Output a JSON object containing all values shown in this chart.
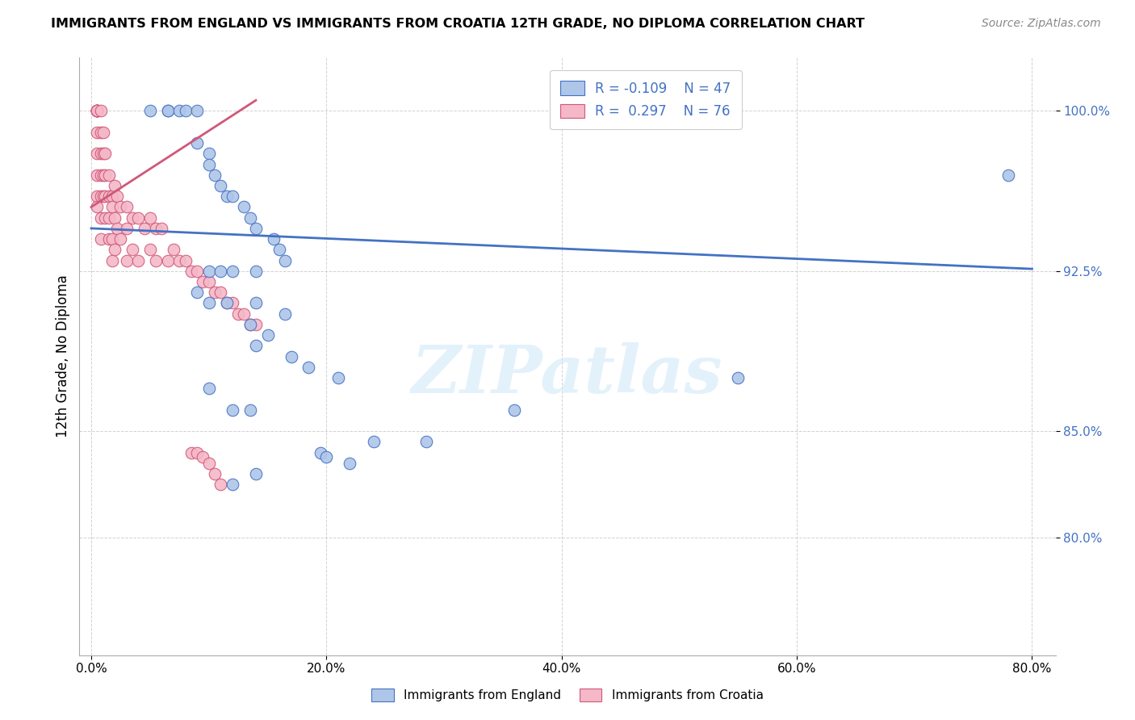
{
  "title": "IMMIGRANTS FROM ENGLAND VS IMMIGRANTS FROM CROATIA 12TH GRADE, NO DIPLOMA CORRELATION CHART",
  "source_text": "Source: ZipAtlas.com",
  "ylabel": "12th Grade, No Diploma",
  "x_tick_labels": [
    "0.0%",
    "20.0%",
    "40.0%",
    "60.0%",
    "80.0%"
  ],
  "x_tick_positions": [
    0.0,
    0.2,
    0.4,
    0.6,
    0.8
  ],
  "y_tick_labels": [
    "80.0%",
    "85.0%",
    "92.5%",
    "100.0%"
  ],
  "y_tick_positions": [
    0.8,
    0.85,
    0.925,
    1.0
  ],
  "xlim": [
    -0.01,
    0.82
  ],
  "ylim": [
    0.745,
    1.025
  ],
  "england_R": -0.109,
  "england_N": 47,
  "croatia_R": 0.297,
  "croatia_N": 76,
  "england_color": "#aec6e8",
  "croatia_color": "#f4b8c8",
  "england_line_color": "#4472c4",
  "croatia_line_color": "#d05878",
  "background_color": "#ffffff",
  "watermark": "ZIPatlas",
  "england_line_x0": 0.0,
  "england_line_x1": 0.8,
  "england_line_y0": 0.945,
  "england_line_y1": 0.926,
  "croatia_line_x0": 0.0,
  "croatia_line_x1": 0.14,
  "croatia_line_y0": 0.955,
  "croatia_line_y1": 1.005,
  "england_x": [
    0.05,
    0.065,
    0.065,
    0.075,
    0.08,
    0.09,
    0.09,
    0.1,
    0.1,
    0.105,
    0.11,
    0.115,
    0.12,
    0.13,
    0.135,
    0.14,
    0.155,
    0.16,
    0.165,
    0.1,
    0.11,
    0.12,
    0.14,
    0.09,
    0.1,
    0.115,
    0.14,
    0.165,
    0.135,
    0.15,
    0.14,
    0.17,
    0.185,
    0.21,
    0.1,
    0.12,
    0.135,
    0.78,
    0.55,
    0.36,
    0.285,
    0.24,
    0.195,
    0.2,
    0.22,
    0.14,
    0.12
  ],
  "england_y": [
    1.0,
    1.0,
    1.0,
    1.0,
    1.0,
    1.0,
    0.985,
    0.98,
    0.975,
    0.97,
    0.965,
    0.96,
    0.96,
    0.955,
    0.95,
    0.945,
    0.94,
    0.935,
    0.93,
    0.925,
    0.925,
    0.925,
    0.925,
    0.915,
    0.91,
    0.91,
    0.91,
    0.905,
    0.9,
    0.895,
    0.89,
    0.885,
    0.88,
    0.875,
    0.87,
    0.86,
    0.86,
    0.97,
    0.875,
    0.86,
    0.845,
    0.845,
    0.84,
    0.838,
    0.835,
    0.83,
    0.825
  ],
  "croatia_x": [
    0.005,
    0.005,
    0.005,
    0.005,
    0.005,
    0.005,
    0.005,
    0.005,
    0.005,
    0.005,
    0.005,
    0.008,
    0.008,
    0.008,
    0.008,
    0.008,
    0.008,
    0.008,
    0.01,
    0.01,
    0.01,
    0.01,
    0.012,
    0.012,
    0.012,
    0.012,
    0.015,
    0.015,
    0.015,
    0.015,
    0.018,
    0.018,
    0.018,
    0.018,
    0.02,
    0.02,
    0.02,
    0.022,
    0.022,
    0.025,
    0.025,
    0.03,
    0.03,
    0.03,
    0.035,
    0.035,
    0.04,
    0.04,
    0.045,
    0.05,
    0.05,
    0.055,
    0.055,
    0.06,
    0.065,
    0.07,
    0.075,
    0.08,
    0.085,
    0.09,
    0.095,
    0.1,
    0.105,
    0.11,
    0.115,
    0.12,
    0.125,
    0.13,
    0.135,
    0.14,
    0.085,
    0.09,
    0.095,
    0.1,
    0.105,
    0.11
  ],
  "croatia_y": [
    1.0,
    1.0,
    1.0,
    1.0,
    1.0,
    1.0,
    0.99,
    0.98,
    0.97,
    0.96,
    0.955,
    1.0,
    0.99,
    0.98,
    0.97,
    0.96,
    0.95,
    0.94,
    0.99,
    0.98,
    0.97,
    0.96,
    0.98,
    0.97,
    0.96,
    0.95,
    0.97,
    0.96,
    0.95,
    0.94,
    0.96,
    0.955,
    0.94,
    0.93,
    0.965,
    0.95,
    0.935,
    0.96,
    0.945,
    0.955,
    0.94,
    0.955,
    0.945,
    0.93,
    0.95,
    0.935,
    0.95,
    0.93,
    0.945,
    0.95,
    0.935,
    0.945,
    0.93,
    0.945,
    0.93,
    0.935,
    0.93,
    0.93,
    0.925,
    0.925,
    0.92,
    0.92,
    0.915,
    0.915,
    0.91,
    0.91,
    0.905,
    0.905,
    0.9,
    0.9,
    0.84,
    0.84,
    0.838,
    0.835,
    0.83,
    0.825
  ]
}
